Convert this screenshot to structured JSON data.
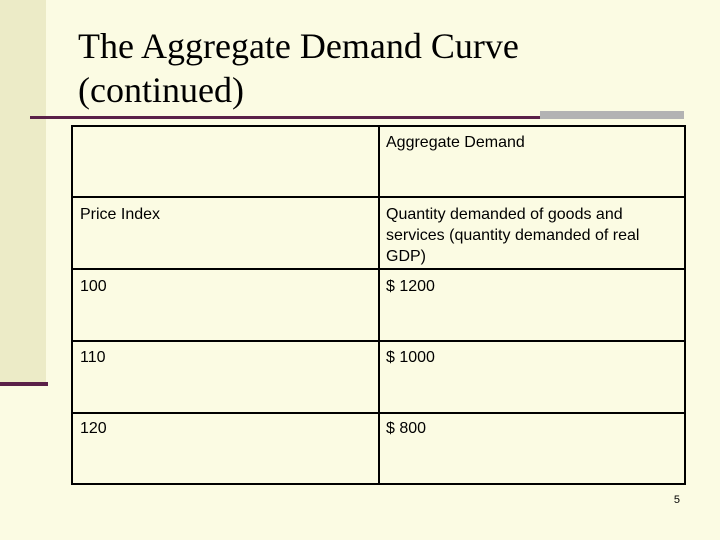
{
  "slide": {
    "title_line1": "The Aggregate Demand Curve",
    "title_line2": "(continued)",
    "page_number": "5"
  },
  "table": {
    "header": "Aggregate Demand",
    "columns": [
      "Price Index",
      "Quantity demanded of goods and services (quantity demanded of real GDP)"
    ],
    "rows": [
      {
        "price_index": "100",
        "quantity": "$ 1200"
      },
      {
        "price_index": "110",
        "quantity": "$ 1000"
      },
      {
        "price_index": "120",
        "quantity": "$ 800"
      }
    ]
  }
}
